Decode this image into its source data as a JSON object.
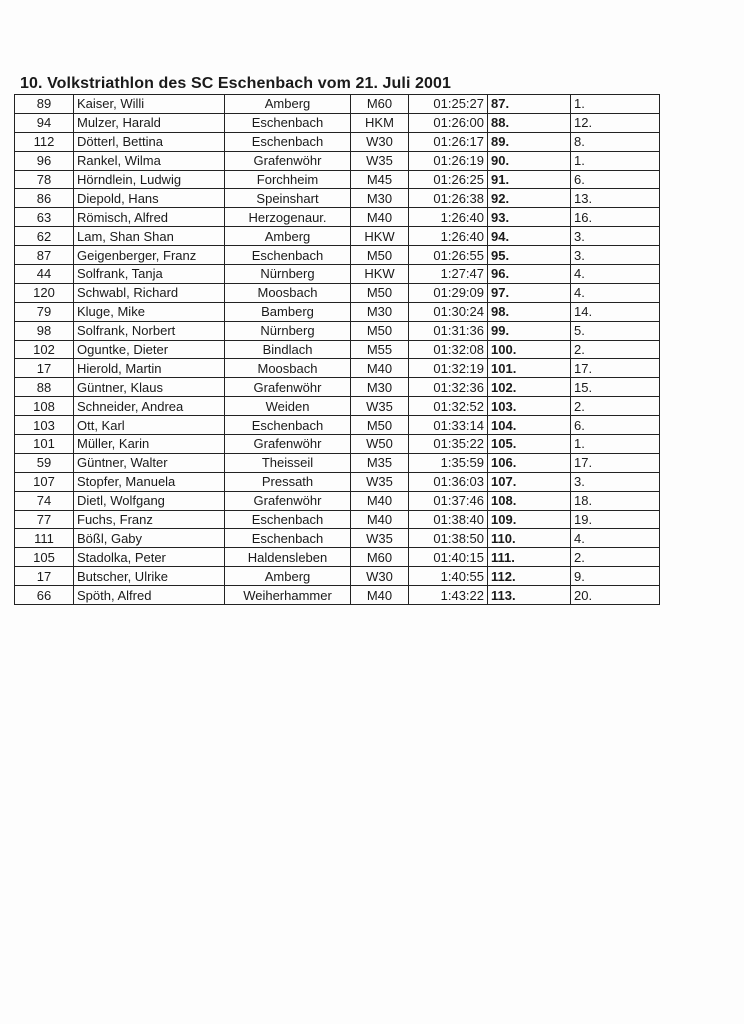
{
  "title": "10. Volkstriathlon des SC Eschenbach vom 21. Juli 2001",
  "rows": [
    [
      "89",
      "Kaiser, Willi",
      "Amberg",
      "M60",
      "01:25:27",
      "87.",
      "1."
    ],
    [
      "94",
      "Mulzer, Harald",
      "Eschenbach",
      "HKM",
      "01:26:00",
      "88.",
      "12."
    ],
    [
      "112",
      "Dötterl, Bettina",
      "Eschenbach",
      "W30",
      "01:26:17",
      "89.",
      "8."
    ],
    [
      "96",
      "Rankel, Wilma",
      "Grafenwöhr",
      "W35",
      "01:26:19",
      "90.",
      "1."
    ],
    [
      "78",
      "Hörndlein, Ludwig",
      "Forchheim",
      "M45",
      "01:26:25",
      "91.",
      "6."
    ],
    [
      "86",
      "Diepold, Hans",
      "Speinshart",
      "M30",
      "01:26:38",
      "92.",
      "13."
    ],
    [
      "63",
      "Römisch, Alfred",
      "Herzogenaur.",
      "M40",
      "1:26:40",
      "93.",
      "16."
    ],
    [
      "62",
      "Lam, Shan Shan",
      "Amberg",
      "HKW",
      "1:26:40",
      "94.",
      "3."
    ],
    [
      "87",
      "Geigenberger, Franz",
      "Eschenbach",
      "M50",
      "01:26:55",
      "95.",
      "3."
    ],
    [
      "44",
      "Solfrank, Tanja",
      "Nürnberg",
      "HKW",
      "1:27:47",
      "96.",
      "4."
    ],
    [
      "120",
      "Schwabl, Richard",
      "Moosbach",
      "M50",
      "01:29:09",
      "97.",
      "4."
    ],
    [
      "79",
      "Kluge, Mike",
      "Bamberg",
      "M30",
      "01:30:24",
      "98.",
      "14."
    ],
    [
      "98",
      "Solfrank, Norbert",
      "Nürnberg",
      "M50",
      "01:31:36",
      "99.",
      "5."
    ],
    [
      "102",
      "Oguntke, Dieter",
      "Bindlach",
      "M55",
      "01:32:08",
      "100.",
      "2."
    ],
    [
      "17",
      "Hierold, Martin",
      "Moosbach",
      "M40",
      "01:32:19",
      "101.",
      "17."
    ],
    [
      "88",
      "Güntner, Klaus",
      "Grafenwöhr",
      "M30",
      "01:32:36",
      "102.",
      "15."
    ],
    [
      "108",
      "Schneider, Andrea",
      "Weiden",
      "W35",
      "01:32:52",
      "103.",
      "2."
    ],
    [
      "103",
      "Ott, Karl",
      "Eschenbach",
      "M50",
      "01:33:14",
      "104.",
      "6."
    ],
    [
      "101",
      "Müller, Karin",
      "Grafenwöhr",
      "W50",
      "01:35:22",
      "105.",
      "1."
    ],
    [
      "59",
      "Güntner, Walter",
      "Theisseil",
      "M35",
      "1:35:59",
      "106.",
      "17."
    ],
    [
      "107",
      "Stopfer, Manuela",
      "Pressath",
      "W35",
      "01:36:03",
      "107.",
      "3."
    ],
    [
      "74",
      "Dietl, Wolfgang",
      "Grafenwöhr",
      "M40",
      "01:37:46",
      "108.",
      "18."
    ],
    [
      "77",
      "Fuchs, Franz",
      "Eschenbach",
      "M40",
      "01:38:40",
      "109.",
      "19."
    ],
    [
      "111",
      "Bößl, Gaby",
      "Eschenbach",
      "W35",
      "01:38:50",
      "110.",
      "4."
    ],
    [
      "105",
      "Stadolka, Peter",
      "Haldensleben",
      "M60",
      "01:40:15",
      "111.",
      "2."
    ],
    [
      "17",
      "Butscher, Ulrike",
      "Amberg",
      "W30",
      "1:40:55",
      "112.",
      "9."
    ],
    [
      "66",
      "Spöth, Alfred",
      "Weiherhammer",
      "M40",
      "1:43:22",
      "113.",
      "20."
    ]
  ]
}
